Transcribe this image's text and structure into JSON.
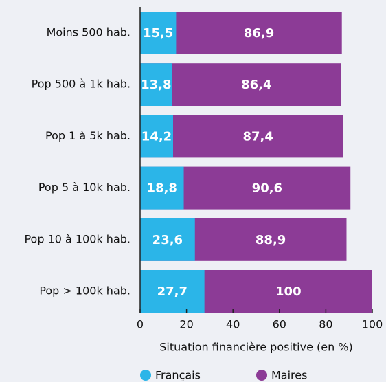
{
  "chart_data": {
    "type": "bar",
    "orientation": "horizontal",
    "overlap": true,
    "categories": [
      "Moins 500 hab.",
      "Pop 500 à 1k hab.",
      "Pop 1 à 5k hab.",
      "Pop 5 à 10k hab.",
      "Pop 10 à 100k hab.",
      "Pop > 100k hab."
    ],
    "series": [
      {
        "name": "Maires",
        "color": "#8c3b96",
        "values": [
          86.9,
          86.4,
          87.4,
          90.6,
          88.9,
          100
        ],
        "value_labels": [
          "86,9",
          "86,4",
          "87,4",
          "90,6",
          "88,9",
          "100"
        ]
      },
      {
        "name": "Français",
        "color": "#2bb5e8",
        "values": [
          15.5,
          13.8,
          14.2,
          18.8,
          23.6,
          27.7
        ],
        "value_labels": [
          "15,5",
          "13,8",
          "14,2",
          "18,8",
          "23,6",
          "27,7"
        ]
      }
    ],
    "x_label": "Situation financière positive (en %)",
    "xlim": [
      0,
      100
    ],
    "xticks": [
      0,
      20,
      40,
      60,
      80,
      100
    ]
  }
}
